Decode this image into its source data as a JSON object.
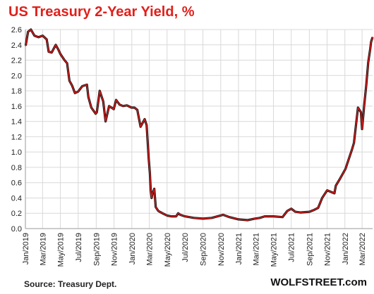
{
  "chart_data": {
    "type": "line",
    "title": "US Treasury 2-Year Yield, %",
    "xlabel": "",
    "ylabel": "",
    "ylim": [
      0,
      2.6
    ],
    "y_ticks": [
      "0.0",
      "0.2",
      "0.4",
      "0.6",
      "0.8",
      "1.0",
      "1.2",
      "1.4",
      "1.6",
      "1.8",
      "2.0",
      "2.2",
      "2.4",
      "2.6"
    ],
    "x_ticks": [
      "Jan/2019",
      "Mar/2019",
      "May/2019",
      "Jul/2019",
      "Sep/2019",
      "Nov/2019",
      "Jan/2020",
      "Mar/2020",
      "May/2020",
      "Jul/2020",
      "Sep/2020",
      "Nov/2020",
      "Jan/2021",
      "Mar/2021",
      "May/2021",
      "Jul/2021",
      "Sep/2021",
      "Nov/2021",
      "Jan/2022",
      "Mar/2022"
    ],
    "grid": true,
    "series": [
      {
        "color": "#d11a1a",
        "x": [
          "2019-01-02",
          "2019-01-10",
          "2019-01-20",
          "2019-02-01",
          "2019-02-15",
          "2019-03-01",
          "2019-03-15",
          "2019-03-22",
          "2019-04-01",
          "2019-04-15",
          "2019-04-25",
          "2019-05-01",
          "2019-05-15",
          "2019-05-24",
          "2019-06-01",
          "2019-06-10",
          "2019-06-20",
          "2019-07-01",
          "2019-07-15",
          "2019-07-31",
          "2019-08-05",
          "2019-08-15",
          "2019-08-30",
          "2019-09-03",
          "2019-09-13",
          "2019-09-25",
          "2019-10-03",
          "2019-10-15",
          "2019-10-31",
          "2019-11-08",
          "2019-11-20",
          "2019-12-02",
          "2019-12-15",
          "2019-12-31",
          "2020-01-10",
          "2020-01-20",
          "2020-01-31",
          "2020-02-14",
          "2020-02-21",
          "2020-02-28",
          "2020-03-03",
          "2020-03-06",
          "2020-03-09",
          "2020-03-12",
          "2020-03-18",
          "2020-03-23",
          "2020-04-01",
          "2020-04-15",
          "2020-05-01",
          "2020-05-15",
          "2020-06-01",
          "2020-06-08",
          "2020-06-15",
          "2020-07-01",
          "2020-08-01",
          "2020-09-01",
          "2020-10-01",
          "2020-11-09",
          "2020-12-01",
          "2021-01-01",
          "2021-02-01",
          "2021-02-25",
          "2021-03-15",
          "2021-04-01",
          "2021-05-01",
          "2021-06-01",
          "2021-06-17",
          "2021-07-01",
          "2021-07-15",
          "2021-08-01",
          "2021-09-01",
          "2021-09-15",
          "2021-10-01",
          "2021-10-15",
          "2021-11-01",
          "2021-11-26",
          "2021-12-01",
          "2021-12-15",
          "2022-01-03",
          "2022-01-10",
          "2022-01-25",
          "2022-02-01",
          "2022-02-10",
          "2022-02-15",
          "2022-02-25",
          "2022-03-01",
          "2022-03-08",
          "2022-03-15",
          "2022-03-22",
          "2022-03-29",
          "2022-04-01",
          "2022-04-06"
        ],
        "values": [
          2.39,
          2.57,
          2.6,
          2.52,
          2.5,
          2.52,
          2.47,
          2.31,
          2.3,
          2.4,
          2.33,
          2.28,
          2.2,
          2.16,
          1.93,
          1.87,
          1.77,
          1.79,
          1.86,
          1.88,
          1.72,
          1.58,
          1.5,
          1.52,
          1.8,
          1.66,
          1.4,
          1.6,
          1.56,
          1.68,
          1.62,
          1.6,
          1.61,
          1.58,
          1.58,
          1.55,
          1.33,
          1.43,
          1.35,
          0.92,
          0.72,
          0.5,
          0.4,
          0.46,
          0.52,
          0.28,
          0.23,
          0.2,
          0.17,
          0.16,
          0.16,
          0.2,
          0.18,
          0.16,
          0.14,
          0.13,
          0.14,
          0.18,
          0.15,
          0.12,
          0.11,
          0.13,
          0.14,
          0.16,
          0.16,
          0.15,
          0.23,
          0.26,
          0.22,
          0.21,
          0.22,
          0.24,
          0.27,
          0.4,
          0.5,
          0.46,
          0.56,
          0.65,
          0.78,
          0.86,
          1.03,
          1.12,
          1.42,
          1.58,
          1.52,
          1.3,
          1.6,
          1.86,
          2.17,
          2.35,
          2.44,
          2.5
        ]
      }
    ]
  },
  "footer": {
    "source": "Source: Treasury Dept.",
    "brand": "WOLFSTREET.com"
  }
}
